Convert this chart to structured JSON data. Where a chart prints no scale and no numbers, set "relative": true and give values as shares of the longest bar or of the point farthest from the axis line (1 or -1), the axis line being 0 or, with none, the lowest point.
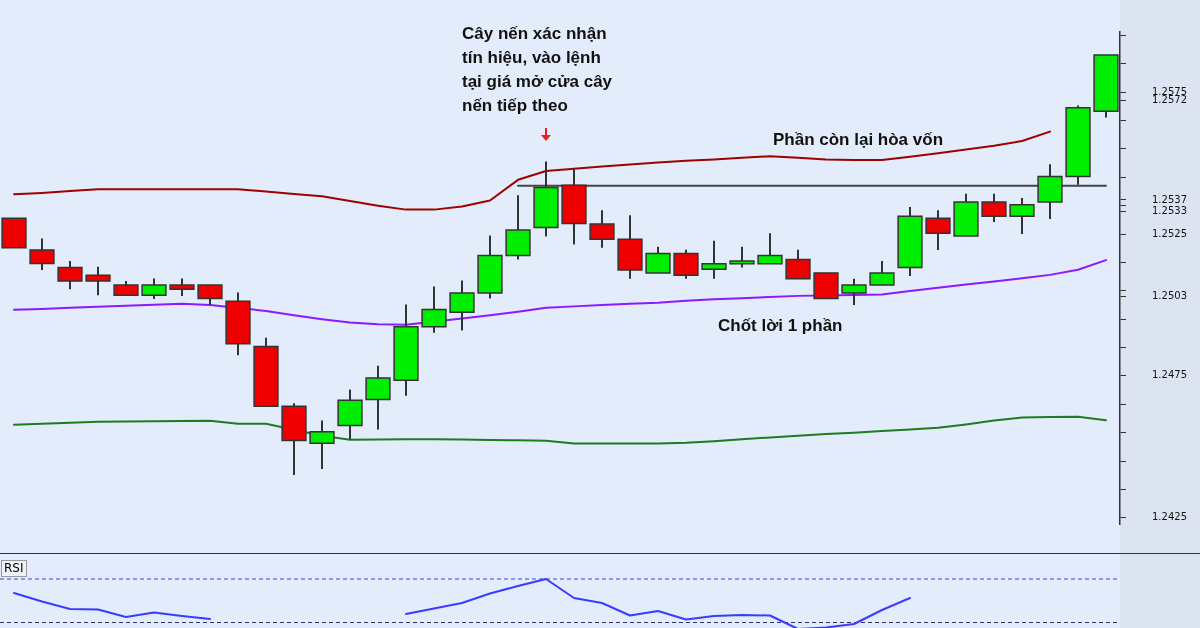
{
  "chart_data": [
    {
      "type": "candlestick",
      "tick_labels": "y",
      "ylim": [
        1.24228,
        1.25962
      ],
      "categories": [
        null,
        null,
        null,
        null,
        null,
        null,
        null,
        null,
        null,
        null,
        null,
        null,
        null,
        null,
        null,
        null,
        null,
        null,
        null,
        null,
        null,
        null,
        null,
        null,
        null,
        null,
        null,
        null,
        null,
        null,
        null,
        null,
        null,
        null,
        null,
        null,
        null,
        null,
        null,
        null
      ],
      "ohlc": [
        [
          1.25306,
          1.25306,
          1.25202,
          1.25202
        ],
        [
          1.25194,
          1.25234,
          1.25123,
          1.25146
        ],
        [
          1.25132,
          1.25155,
          1.25055,
          1.25084
        ],
        [
          1.25105,
          1.25135,
          1.25034,
          1.25084
        ],
        [
          1.2507,
          1.25084,
          1.25034,
          1.25034
        ],
        [
          1.25034,
          1.25093,
          1.25021,
          1.2507
        ],
        [
          1.2507,
          1.25093,
          1.25032,
          1.25055
        ],
        [
          1.2507,
          1.2507,
          1.25,
          1.25023
        ],
        [
          1.25013,
          1.25044,
          1.24823,
          1.24863
        ],
        [
          1.24854,
          1.24884,
          1.24643,
          1.24643
        ],
        [
          1.24643,
          1.24654,
          1.24401,
          1.24522
        ],
        [
          1.24513,
          1.24593,
          1.24422,
          1.24553
        ],
        [
          1.24575,
          1.24702,
          1.24527,
          1.24664
        ],
        [
          1.24667,
          1.24786,
          1.24561,
          1.24743
        ],
        [
          1.24735,
          1.25002,
          1.2468,
          1.24923
        ],
        [
          1.24923,
          1.25065,
          1.24902,
          1.24984
        ],
        [
          1.24974,
          1.25086,
          1.2491,
          1.25042
        ],
        [
          1.25042,
          1.25245,
          1.25023,
          1.25174
        ],
        [
          1.25174,
          1.25387,
          1.2516,
          1.25264
        ],
        [
          1.25273,
          1.25506,
          1.25241,
          1.25414
        ],
        [
          1.25422,
          1.25482,
          1.25213,
          1.25287
        ],
        [
          1.25285,
          1.25334,
          1.25202,
          1.25232
        ],
        [
          1.25232,
          1.25316,
          1.25092,
          1.25123
        ],
        [
          1.25113,
          1.25205,
          1.25113,
          1.25181
        ],
        [
          1.25181,
          1.25195,
          1.25092,
          1.25105
        ],
        [
          1.25126,
          1.25226,
          1.25092,
          1.25145
        ],
        [
          1.25145,
          1.25205,
          1.25132,
          1.25155
        ],
        [
          1.25145,
          1.25253,
          1.25145,
          1.25174
        ],
        [
          1.2516,
          1.25195,
          1.25092,
          1.25092
        ],
        [
          1.25113,
          1.25113,
          1.25023,
          1.25023
        ],
        [
          1.25042,
          1.25092,
          1.25,
          1.2507
        ],
        [
          1.2507,
          1.25155,
          1.2507,
          1.25113
        ],
        [
          1.25132,
          1.25345,
          1.25102,
          1.25313
        ],
        [
          1.25306,
          1.25334,
          1.25194,
          1.25253
        ],
        [
          1.25243,
          1.25392,
          1.25243,
          1.25363
        ],
        [
          1.25363,
          1.25392,
          1.25292,
          1.25313
        ],
        [
          1.25313,
          1.25377,
          1.2525,
          1.25353
        ],
        [
          1.25363,
          1.25496,
          1.25303,
          1.25453
        ],
        [
          1.25453,
          1.25703,
          1.25424,
          1.25695
        ],
        [
          1.25683,
          1.25881,
          1.25661,
          1.25881
        ]
      ],
      "colors": [
        "#ee0000",
        "#ee0000",
        "#ee0000",
        "#ee0000",
        "#ee0000",
        "#00ee00",
        "#ee0000",
        "#ee0000",
        "#ee0000",
        "#ee0000",
        "#ee0000",
        "#00ee00",
        "#00ee00",
        "#00ee00",
        "#00ee00",
        "#00ee00",
        "#00ee00",
        "#00ee00",
        "#00ee00",
        "#00ee00",
        "#ee0000",
        "#ee0000",
        "#ee0000",
        "#00ee00",
        "#ee0000",
        "#00ee00",
        "#00ee00",
        "#00ee00",
        "#ee0000",
        "#ee0000",
        "#00ee00",
        "#00ee00",
        "#00ee00",
        "#ee0000",
        "#00ee00",
        "#ee0000",
        "#00ee00",
        "#00ee00",
        "#00ee00",
        "#00ee00"
      ],
      "series": [
        {
          "type": "line",
          "color": "#a00000",
          "values": [
            1.2539,
            1.25395,
            1.25402,
            1.25408,
            1.25408,
            1.25408,
            1.25408,
            1.25408,
            1.25408,
            1.254,
            1.25391,
            1.25383,
            1.25366,
            1.2535,
            1.25336,
            1.25336,
            1.25347,
            1.25368,
            1.25441,
            1.25472,
            1.2548,
            1.25488,
            1.25495,
            1.25502,
            1.25508,
            1.25513,
            1.25519,
            1.25524,
            1.25519,
            1.25513,
            1.25511,
            1.25511,
            1.25522,
            1.25535,
            1.25548,
            1.25561,
            1.25578,
            1.25611,
            null,
            null
          ]
        },
        {
          "type": "line",
          "color": "#8c1aff",
          "values": [
            1.24983,
            1.24986,
            1.2499,
            1.24994,
            1.24997,
            1.25001,
            1.25004,
            1.25,
            null,
            1.24979,
            1.24964,
            1.2495,
            1.24938,
            1.24932,
            1.2493,
            null,
            1.24952,
            1.24964,
            1.24976,
            1.2499,
            1.24995,
            1.25,
            1.25004,
            1.25008,
            1.25015,
            1.2502,
            1.25024,
            1.25028,
            1.25032,
            null,
            1.25035,
            1.25037,
            1.25049,
            1.25061,
            1.25072,
            1.25083,
            1.25094,
            1.25106,
            1.25124,
            1.25158
          ]
        },
        {
          "type": "line",
          "color": "#1e7b1e",
          "values": [
            1.24578,
            1.24581,
            1.24585,
            1.24588,
            1.24589,
            1.2459,
            1.24591,
            1.24592,
            1.24581,
            1.24581,
            null,
            1.24539,
            1.24525,
            1.24526,
            1.24527,
            1.24527,
            1.24526,
            1.24524,
            1.24523,
            1.24521,
            1.24512,
            1.24512,
            1.24512,
            1.24512,
            1.24514,
            1.2452,
            1.24527,
            1.24533,
            1.24539,
            1.24545,
            1.2455,
            1.24556,
            1.24561,
            1.24567,
            1.24579,
            1.24593,
            1.24603,
            1.24605,
            1.24606,
            1.24594
          ]
        },
        {
          "type": "line",
          "color": "#444444",
          "values": [
            null,
            null,
            null,
            null,
            null,
            null,
            null,
            null,
            null,
            null,
            null,
            null,
            null,
            null,
            null,
            null,
            null,
            null,
            1.2542,
            1.2542,
            1.2542,
            1.2542,
            1.2542,
            1.2542,
            1.2542,
            1.2542,
            1.2542,
            1.2542,
            1.2542,
            1.2542,
            1.2542,
            1.2542,
            1.2542,
            1.2542,
            1.2542,
            1.2542,
            1.2542,
            null,
            1.2542,
            1.2542
          ]
        }
      ],
      "yticks": [
        1.2425,
        {
          "value": 1.2435,
          "label": null
        },
        {
          "value": 1.2445,
          "label": null
        },
        {
          "value": 1.2455,
          "label": null
        },
        {
          "value": 1.2465,
          "label": null
        },
        1.2475,
        {
          "value": 1.2485,
          "label": null
        },
        {
          "value": 1.2495,
          "label": null
        },
        1.2503,
        {
          "value": 1.2505,
          "label": null
        },
        {
          "value": 1.2515,
          "label": null
        },
        1.2525,
        1.2533,
        {
          "value": 1.2535,
          "label": null
        },
        1.2537,
        {
          "value": 1.2545,
          "label": null
        },
        {
          "value": 1.2555,
          "label": null
        },
        {
          "value": 1.2565,
          "label": null
        },
        1.2572,
        1.2575,
        {
          "value": 1.2585,
          "label": null
        },
        {
          "value": 1.2595,
          "label": null
        }
      ],
      "annotations": [
        "Cây nến xác nhận\ntín hiệu, vào lệnh\ntại giá mở cửa cây\nnến tiếp theo",
        "Phần còn lại hòa vốn",
        "Chốt lời 1 phần"
      ]
    },
    {
      "type": "line",
      "title": "RSI",
      "relative": true,
      "tick_labels": false,
      "categories": [
        null,
        null,
        null,
        null,
        null,
        null,
        null,
        null,
        null,
        null,
        null,
        null,
        null,
        null,
        null,
        null,
        null,
        null,
        null,
        null,
        null,
        null,
        null,
        null,
        null,
        null,
        null,
        null,
        null,
        null,
        null,
        null,
        null,
        null,
        null,
        null,
        null,
        null,
        null,
        null
      ],
      "series": [
        {
          "color": "#3b3bff",
          "values": [
            0.72,
            0.55,
            0.4,
            0.39,
            0.24,
            0.33,
            0.26,
            0.2,
            null,
            null,
            null,
            null,
            null,
            null,
            0.3,
            0.41,
            0.52,
            0.71,
            0.86,
            1,
            0.62,
            0.52,
            0.27,
            0.36,
            0.19,
            0.26,
            0.28,
            0.27,
            0,
            0.03,
            0.1,
            0.38,
            0.62,
            null,
            null,
            null,
            null,
            null,
            null,
            null
          ]
        }
      ],
      "ref_lines": [
        {
          "axis": "y",
          "value": 1,
          "color": "#3b3bff",
          "line_style": "dashed"
        },
        {
          "axis": "y",
          "value": 0.13,
          "color": "#333366",
          "line_style": "dashed"
        }
      ]
    }
  ]
}
